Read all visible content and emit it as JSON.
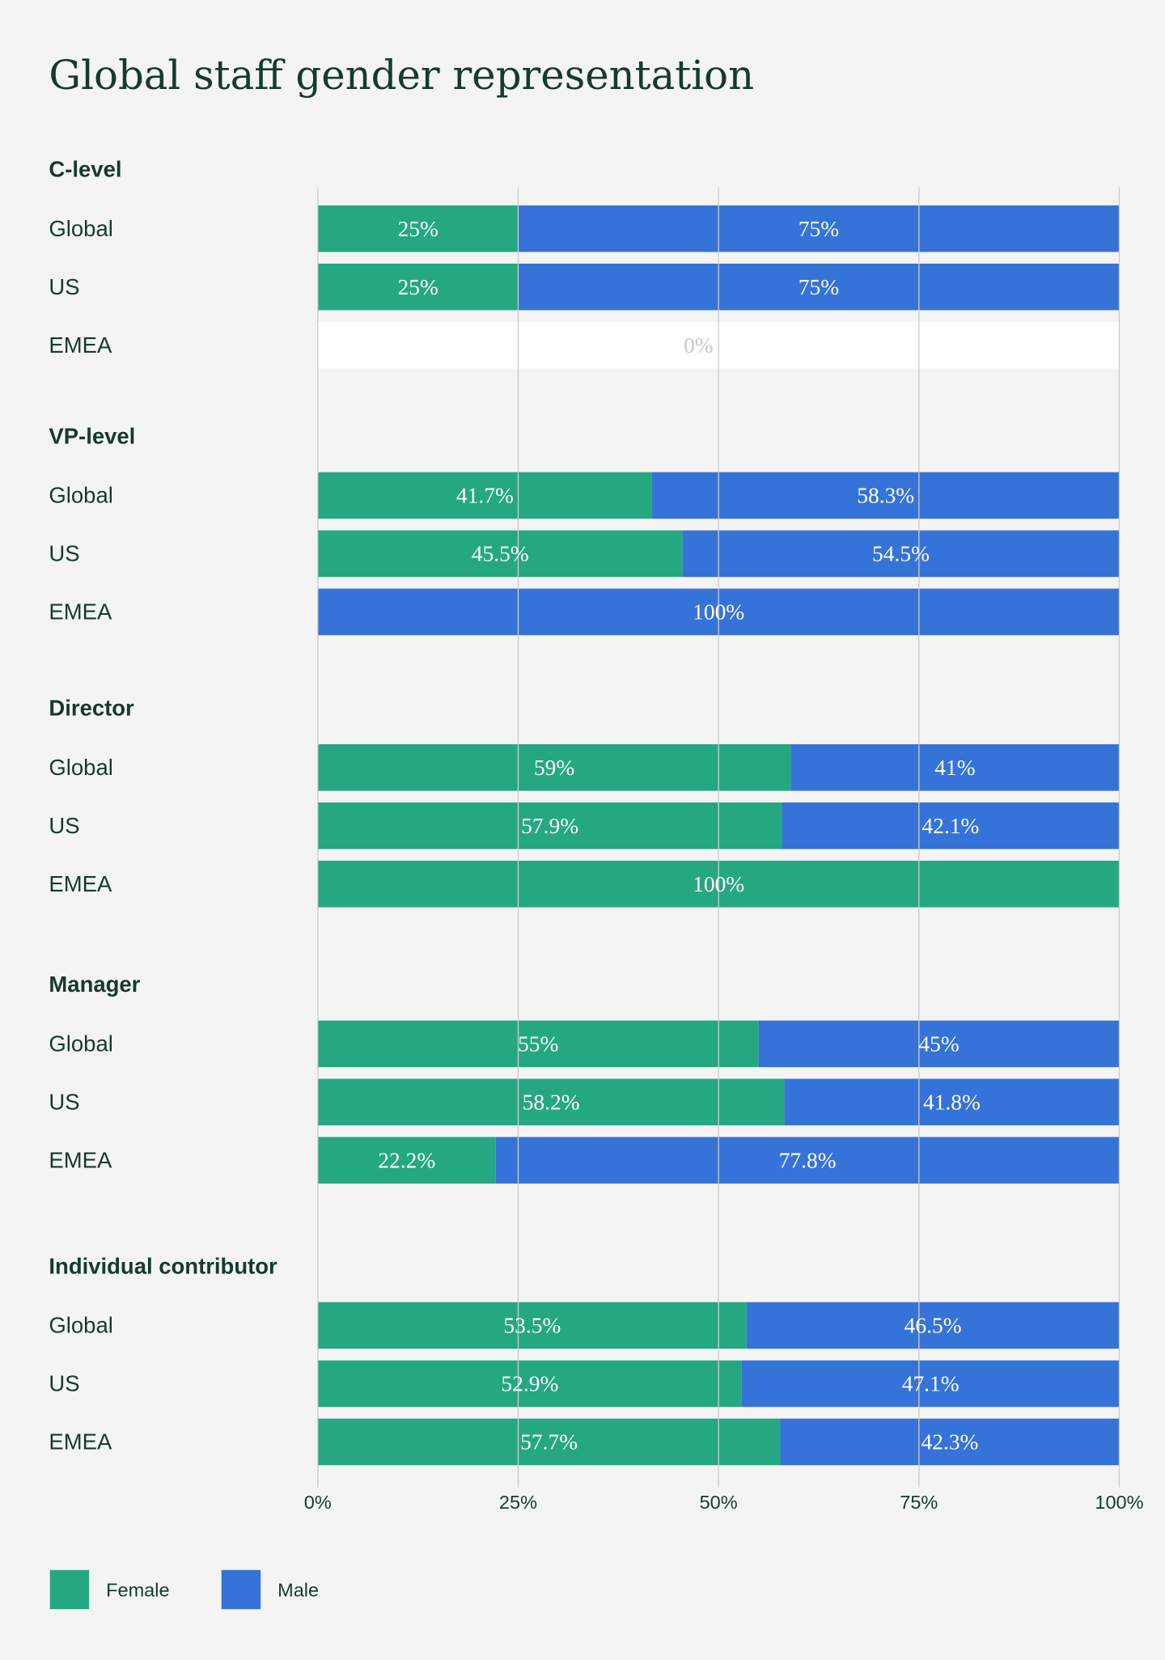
{
  "chart_data": {
    "type": "bar",
    "orientation": "horizontal",
    "stacked": true,
    "title": "Global staff gender representation",
    "xlim": [
      0,
      100
    ],
    "x_ticks": [
      "0%",
      "25%",
      "50%",
      "75%",
      "100%"
    ],
    "grid": true,
    "legend_placement": "bottom-left",
    "series": [
      {
        "name": "Female",
        "color": "#25a782"
      },
      {
        "name": "Male",
        "color": "#3673d8"
      }
    ],
    "groups": [
      {
        "name": "C-level",
        "rows": [
          {
            "region": "Global",
            "female": 25,
            "male": 75,
            "female_label": "25%",
            "male_label": "75%"
          },
          {
            "region": "US",
            "female": 25,
            "male": 75,
            "female_label": "25%",
            "male_label": "75%"
          },
          {
            "region": "EMEA",
            "female": 0,
            "male": 0,
            "empty_label": "0%"
          }
        ]
      },
      {
        "name": "VP-level",
        "rows": [
          {
            "region": "Global",
            "female": 41.7,
            "male": 58.3,
            "female_label": "41.7%",
            "male_label": "58.3%"
          },
          {
            "region": "US",
            "female": 45.5,
            "male": 54.5,
            "female_label": "45.5%",
            "male_label": "54.5%"
          },
          {
            "region": "EMEA",
            "female": 0,
            "male": 100,
            "male_label": "100%"
          }
        ]
      },
      {
        "name": "Director",
        "rows": [
          {
            "region": "Global",
            "female": 59,
            "male": 41,
            "female_label": "59%",
            "male_label": "41%"
          },
          {
            "region": "US",
            "female": 57.9,
            "male": 42.1,
            "female_label": "57.9%",
            "male_label": "42.1%"
          },
          {
            "region": "EMEA",
            "female": 100,
            "male": 0,
            "female_label": "100%"
          }
        ]
      },
      {
        "name": "Manager",
        "rows": [
          {
            "region": "Global",
            "female": 55,
            "male": 45,
            "female_label": "55%",
            "male_label": "45%"
          },
          {
            "region": "US",
            "female": 58.2,
            "male": 41.8,
            "female_label": "58.2%",
            "male_label": "41.8%"
          },
          {
            "region": "EMEA",
            "female": 22.2,
            "male": 77.8,
            "female_label": "22.2%",
            "male_label": "77.8%"
          }
        ]
      },
      {
        "name": "Individual contributor",
        "rows": [
          {
            "region": "Global",
            "female": 53.5,
            "male": 46.5,
            "female_label": "53.5%",
            "male_label": "46.5%"
          },
          {
            "region": "US",
            "female": 52.9,
            "male": 47.1,
            "female_label": "52.9%",
            "male_label": "47.1%"
          },
          {
            "region": "EMEA",
            "female": 57.7,
            "male": 42.3,
            "female_label": "57.7%",
            "male_label": "42.3%"
          }
        ]
      }
    ]
  }
}
